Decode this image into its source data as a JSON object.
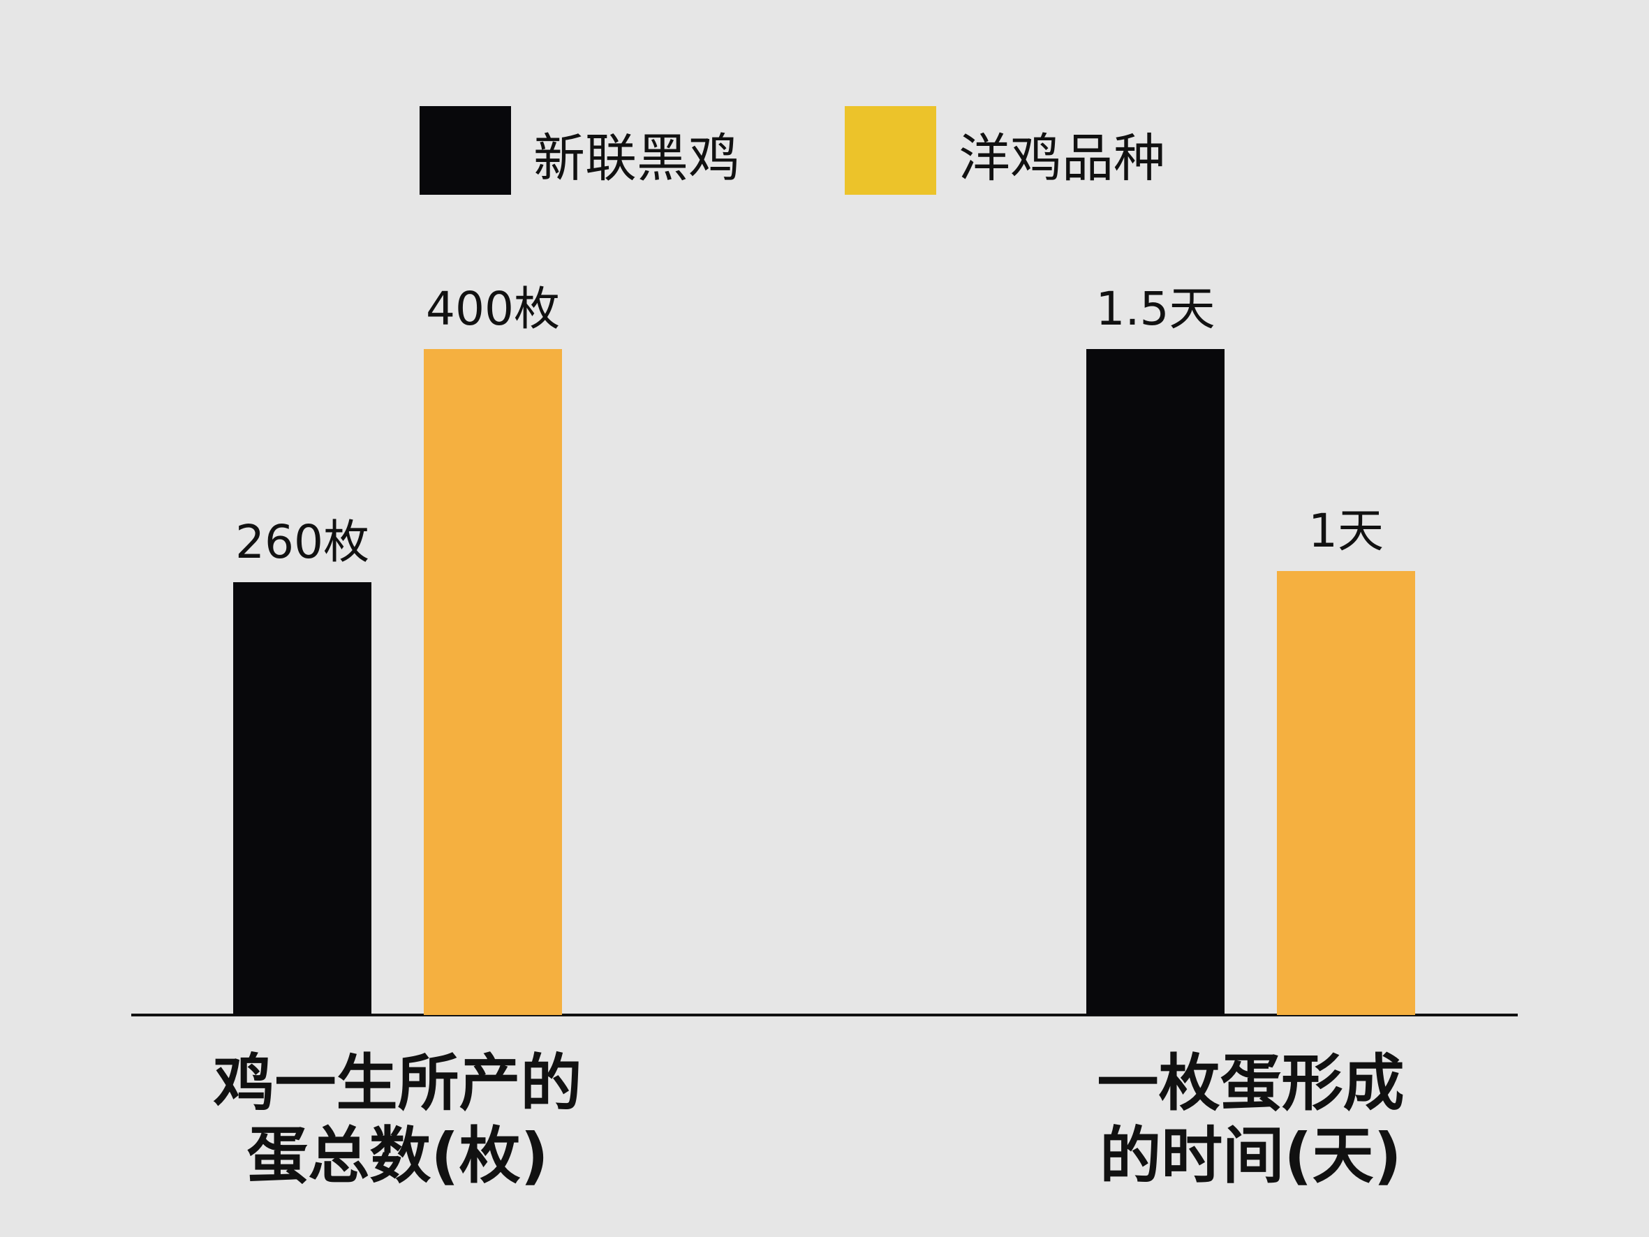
{
  "chart_data": {
    "type": "bar",
    "categories": [
      "鸡一生所产的蛋总数(枚)",
      "一枚蛋形成的时间(天)"
    ],
    "series": [
      {
        "name": "新联黑鸡",
        "color": "#08080b",
        "legend_color": "#08080b",
        "values": [
          260,
          1.5
        ],
        "value_labels": [
          "260枚",
          "1.5天"
        ]
      },
      {
        "name": "洋鸡品种",
        "color": "#f5b040",
        "legend_color": "#ecc32a",
        "values": [
          400,
          1
        ],
        "value_labels": [
          "400枚",
          "1天"
        ]
      }
    ]
  }
}
